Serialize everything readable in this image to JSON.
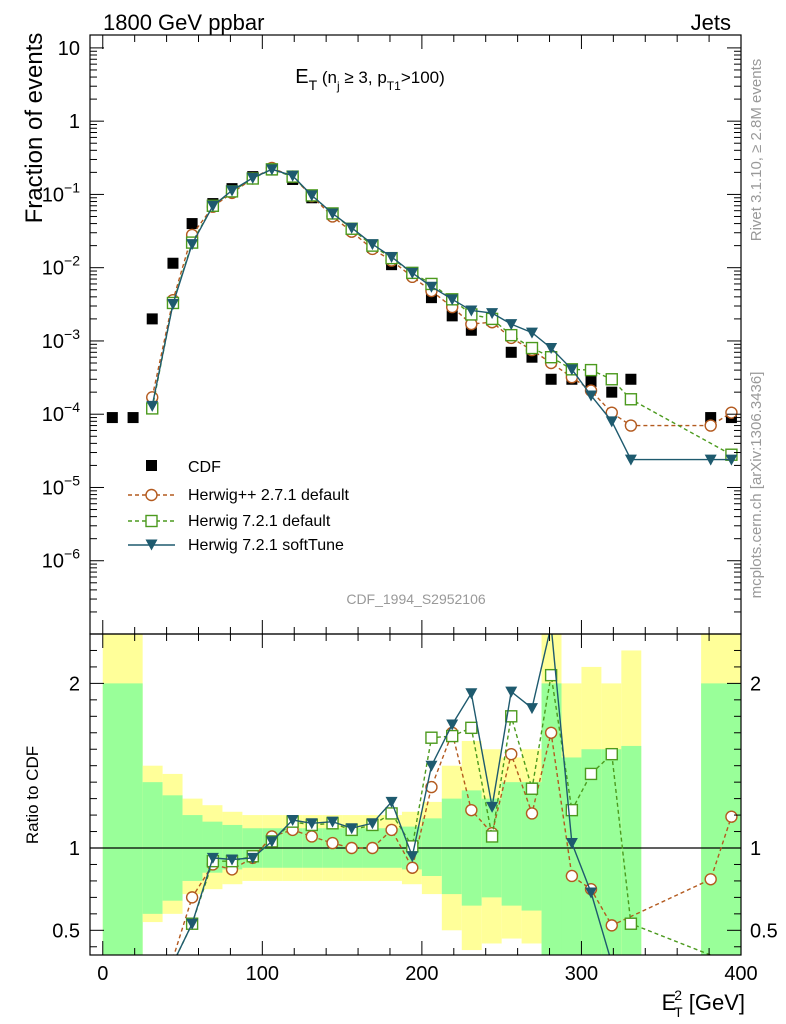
{
  "header": {
    "left": "1800 GeV ppbar",
    "right": "Jets"
  },
  "side_labels": {
    "rivet": "Rivet 3.1.10, ≥ 2.8M events",
    "mcplots": "mcplots.cern.ch [arXiv:1306.3436]"
  },
  "watermark": "CDF_1994_S2952106",
  "chart_data": [
    {
      "type": "scatter",
      "panel": "main",
      "title_main": "E",
      "title_sub": "T",
      "title_rest_open": " (n",
      "title_rest_sub": "j",
      "title_rest_mid": " ≥ 3, p",
      "title_rest_sub2": "T1",
      "title_rest_close": ">100)",
      "ylabel": "Fraction of events",
      "yscale": "log",
      "ylim": [
        1e-07,
        15
      ],
      "xlim": [
        -8,
        400
      ],
      "y_ticks": [
        {
          "v": 10,
          "label": "10"
        },
        {
          "v": 1,
          "label": "1"
        },
        {
          "v": 0.1,
          "base": "10",
          "exp": "−1"
        },
        {
          "v": 0.01,
          "base": "10",
          "exp": "−2"
        },
        {
          "v": 0.001,
          "base": "10",
          "exp": "−3"
        },
        {
          "v": 0.0001,
          "base": "10",
          "exp": "−4"
        },
        {
          "v": 1e-05,
          "base": "10",
          "exp": "−5"
        },
        {
          "v": 1e-06,
          "base": "10",
          "exp": "−6"
        }
      ],
      "legend_position": "bottom-left",
      "series": [
        {
          "name": "CDF",
          "color": "#000000",
          "marker": "square-filled",
          "x": [
            6,
            19,
            31,
            44,
            56,
            69,
            81,
            94,
            106,
            119,
            131,
            144,
            156,
            169,
            181,
            194,
            206,
            219,
            231,
            244,
            256,
            269,
            281,
            294,
            306,
            319,
            331,
            381,
            394
          ],
          "y": [
            9e-05,
            9e-05,
            0.002,
            0.0115,
            0.04,
            0.075,
            0.12,
            0.175,
            0.215,
            0.16,
            0.09,
            0.055,
            0.033,
            0.019,
            0.011,
            0.0085,
            0.0039,
            0.0022,
            0.0014,
            0.0019,
            0.0007,
            0.0006,
            0.0003,
            0.0003,
            0.00028,
            0.0002,
            0.0003,
            9e-05,
            9e-05
          ]
        },
        {
          "name": "Herwig++ 2.7.1 default",
          "color": "#b35a1f",
          "marker": "circle-open",
          "dash": "dashed",
          "x": [
            31,
            44,
            56,
            69,
            81,
            94,
            106,
            119,
            131,
            144,
            156,
            169,
            181,
            194,
            206,
            219,
            231,
            244,
            256,
            269,
            281,
            294,
            306,
            319,
            331,
            381,
            394
          ],
          "y": [
            0.00017,
            0.0036,
            0.028,
            0.068,
            0.105,
            0.165,
            0.23,
            0.175,
            0.095,
            0.05,
            0.031,
            0.018,
            0.0125,
            0.0075,
            0.0048,
            0.0029,
            0.0017,
            0.0018,
            0.0011,
            0.00075,
            0.0005,
            0.00032,
            0.00021,
            0.000105,
            7e-05,
            7e-05,
            0.000105
          ]
        },
        {
          "name": "Herwig 7.2.1 default",
          "color": "#4c9a1e",
          "marker": "square-open",
          "dash": "dashed",
          "x": [
            31,
            44,
            56,
            69,
            81,
            94,
            106,
            119,
            131,
            144,
            156,
            169,
            181,
            194,
            206,
            219,
            231,
            244,
            256,
            269,
            281,
            294,
            306,
            319,
            331,
            394
          ],
          "y": [
            0.00012,
            0.0033,
            0.022,
            0.07,
            0.11,
            0.165,
            0.22,
            0.175,
            0.097,
            0.055,
            0.034,
            0.02,
            0.0135,
            0.0085,
            0.006,
            0.0037,
            0.0023,
            0.002,
            0.0012,
            0.0008,
            0.0006,
            0.00041,
            0.0004,
            0.0003,
            0.00016,
            2.8e-05
          ]
        },
        {
          "name": "Herwig 7.2.1 softTune",
          "color": "#1e5a6e",
          "marker": "triangle-down-filled",
          "dash": "solid",
          "x": [
            31,
            44,
            56,
            69,
            81,
            94,
            106,
            119,
            131,
            144,
            156,
            169,
            181,
            194,
            206,
            219,
            231,
            244,
            256,
            269,
            281,
            294,
            306,
            319,
            331,
            381,
            394
          ],
          "y": [
            0.00013,
            0.0032,
            0.021,
            0.07,
            0.113,
            0.168,
            0.22,
            0.18,
            0.097,
            0.055,
            0.035,
            0.021,
            0.014,
            0.0085,
            0.0055,
            0.0037,
            0.0026,
            0.0024,
            0.0017,
            0.0013,
            0.0008,
            0.00041,
            0.00018,
            8e-05,
            2.4e-05,
            2.4e-05,
            2.4e-05
          ]
        }
      ]
    },
    {
      "type": "line",
      "panel": "ratio",
      "ylabel": "Ratio to CDF",
      "xlabel_main": "E",
      "xlabel_sup": "2",
      "xlabel_sub": "T",
      "xlabel_rest": " [GeV]",
      "ylim": [
        0.35,
        2.3
      ],
      "xlim": [
        -8,
        400
      ],
      "x_ticks": [
        0,
        100,
        200,
        300,
        400
      ],
      "y_ticks": [
        {
          "v": 0.5,
          "label": "0.5"
        },
        {
          "v": 1,
          "label": "1"
        },
        {
          "v": 2,
          "label": "2"
        }
      ],
      "bands": [
        {
          "x0": 0,
          "x1": 25,
          "yellow": [
            0.35,
            2.3
          ],
          "green": [
            0.35,
            2.0
          ]
        },
        {
          "x0": 25,
          "x1": 37.5,
          "yellow": [
            0.55,
            1.5
          ],
          "green": [
            0.6,
            1.4
          ]
        },
        {
          "x0": 37.5,
          "x1": 50,
          "yellow": [
            0.6,
            1.45
          ],
          "green": [
            0.68,
            1.32
          ]
        },
        {
          "x0": 50,
          "x1": 62.5,
          "yellow": [
            0.72,
            1.3
          ],
          "green": [
            0.8,
            1.2
          ]
        },
        {
          "x0": 62.5,
          "x1": 75,
          "yellow": [
            0.75,
            1.26
          ],
          "green": [
            0.85,
            1.16
          ]
        },
        {
          "x0": 75,
          "x1": 87.5,
          "yellow": [
            0.78,
            1.22
          ],
          "green": [
            0.87,
            1.14
          ]
        },
        {
          "x0": 87.5,
          "x1": 100,
          "yellow": [
            0.8,
            1.2
          ],
          "green": [
            0.88,
            1.12
          ]
        },
        {
          "x0": 100,
          "x1": 112.5,
          "yellow": [
            0.8,
            1.2
          ],
          "green": [
            0.88,
            1.12
          ]
        },
        {
          "x0": 112.5,
          "x1": 125,
          "yellow": [
            0.8,
            1.2
          ],
          "green": [
            0.88,
            1.12
          ]
        },
        {
          "x0": 125,
          "x1": 137.5,
          "yellow": [
            0.8,
            1.2
          ],
          "green": [
            0.88,
            1.12
          ]
        },
        {
          "x0": 137.5,
          "x1": 150,
          "yellow": [
            0.8,
            1.2
          ],
          "green": [
            0.88,
            1.12
          ]
        },
        {
          "x0": 150,
          "x1": 162.5,
          "yellow": [
            0.8,
            1.2
          ],
          "green": [
            0.88,
            1.12
          ]
        },
        {
          "x0": 162.5,
          "x1": 175,
          "yellow": [
            0.8,
            1.2
          ],
          "green": [
            0.88,
            1.12
          ]
        },
        {
          "x0": 175,
          "x1": 187.5,
          "yellow": [
            0.8,
            1.2
          ],
          "green": [
            0.88,
            1.12
          ]
        },
        {
          "x0": 187.5,
          "x1": 200,
          "yellow": [
            0.78,
            1.22
          ],
          "green": [
            0.87,
            1.13
          ]
        },
        {
          "x0": 200,
          "x1": 212.5,
          "yellow": [
            0.72,
            1.28
          ],
          "green": [
            0.83,
            1.18
          ]
        },
        {
          "x0": 212.5,
          "x1": 225,
          "yellow": [
            0.5,
            1.5
          ],
          "green": [
            0.72,
            1.3
          ]
        },
        {
          "x0": 225,
          "x1": 237.5,
          "yellow": [
            0.38,
            1.65
          ],
          "green": [
            0.65,
            1.35
          ]
        },
        {
          "x0": 237.5,
          "x1": 250,
          "yellow": [
            0.42,
            1.6
          ],
          "green": [
            0.7,
            1.3
          ]
        },
        {
          "x0": 250,
          "x1": 262.5,
          "yellow": [
            0.45,
            1.55
          ],
          "green": [
            0.65,
            1.4
          ]
        },
        {
          "x0": 262.5,
          "x1": 275,
          "yellow": [
            0.42,
            1.6
          ],
          "green": [
            0.62,
            1.4
          ]
        },
        {
          "x0": 275,
          "x1": 287.5,
          "yellow": [
            0.35,
            2.3
          ],
          "green": [
            0.35,
            2.0
          ]
        },
        {
          "x0": 287.5,
          "x1": 300,
          "yellow": [
            0.35,
            2.0
          ],
          "green": [
            0.35,
            1.55
          ]
        },
        {
          "x0": 300,
          "x1": 312.5,
          "yellow": [
            0.35,
            2.1
          ],
          "green": [
            0.35,
            1.6
          ]
        },
        {
          "x0": 312.5,
          "x1": 325,
          "yellow": [
            0.35,
            2.0
          ],
          "green": [
            0.35,
            1.6
          ]
        },
        {
          "x0": 325,
          "x1": 337.5,
          "yellow": [
            0.35,
            2.2
          ],
          "green": [
            0.35,
            1.62
          ]
        },
        {
          "x0": 375,
          "x1": 400,
          "yellow": [
            0.35,
            2.3
          ],
          "green": [
            0.35,
            2.0
          ]
        }
      ],
      "series": [
        {
          "name": "Herwig++ 2.7.1 default",
          "color": "#b35a1f",
          "marker": "circle-open",
          "dash": "dashed",
          "x": [
            44,
            56,
            69,
            81,
            94,
            106,
            119,
            131,
            144,
            156,
            169,
            181,
            194,
            206,
            219,
            231,
            244,
            256,
            269,
            281,
            294,
            306,
            319,
            381,
            394
          ],
          "y": [
            0.33,
            0.7,
            0.9,
            0.87,
            0.94,
            1.07,
            1.11,
            1.07,
            1.03,
            1.0,
            1.0,
            1.11,
            0.88,
            1.37,
            1.7,
            1.23,
            1.09,
            1.57,
            1.21,
            1.7,
            0.83,
            0.75,
            0.53,
            0.81,
            1.19
          ]
        },
        {
          "name": "Herwig 7.2.1 default",
          "color": "#4c9a1e",
          "marker": "square-open",
          "dash": "dashed",
          "x": [
            44,
            56,
            69,
            81,
            94,
            106,
            119,
            131,
            144,
            156,
            169,
            181,
            194,
            206,
            219,
            231,
            244,
            256,
            269,
            281,
            294,
            306,
            319,
            331,
            394
          ],
          "y": [
            0.3,
            0.54,
            0.92,
            0.92,
            0.95,
            1.04,
            1.16,
            1.14,
            1.15,
            1.11,
            1.14,
            1.21,
            1.01,
            1.67,
            1.68,
            1.73,
            1.07,
            1.8,
            1.36,
            2.05,
            1.23,
            1.45,
            1.57,
            0.54,
            0.3
          ]
        },
        {
          "name": "Herwig 7.2.1 softTune",
          "color": "#1e5a6e",
          "marker": "triangle-down-filled",
          "dash": "solid",
          "x": [
            44,
            56,
            69,
            81,
            94,
            106,
            119,
            131,
            144,
            156,
            169,
            181,
            194,
            206,
            219,
            231,
            244,
            256,
            269,
            281,
            294,
            306,
            319
          ],
          "y": [
            0.3,
            0.54,
            0.94,
            0.93,
            0.94,
            1.04,
            1.17,
            1.15,
            1.16,
            1.12,
            1.15,
            1.28,
            0.95,
            1.5,
            1.75,
            1.94,
            1.25,
            1.95,
            1.85,
            2.35,
            1.03,
            0.73,
            0.3
          ]
        }
      ]
    }
  ]
}
